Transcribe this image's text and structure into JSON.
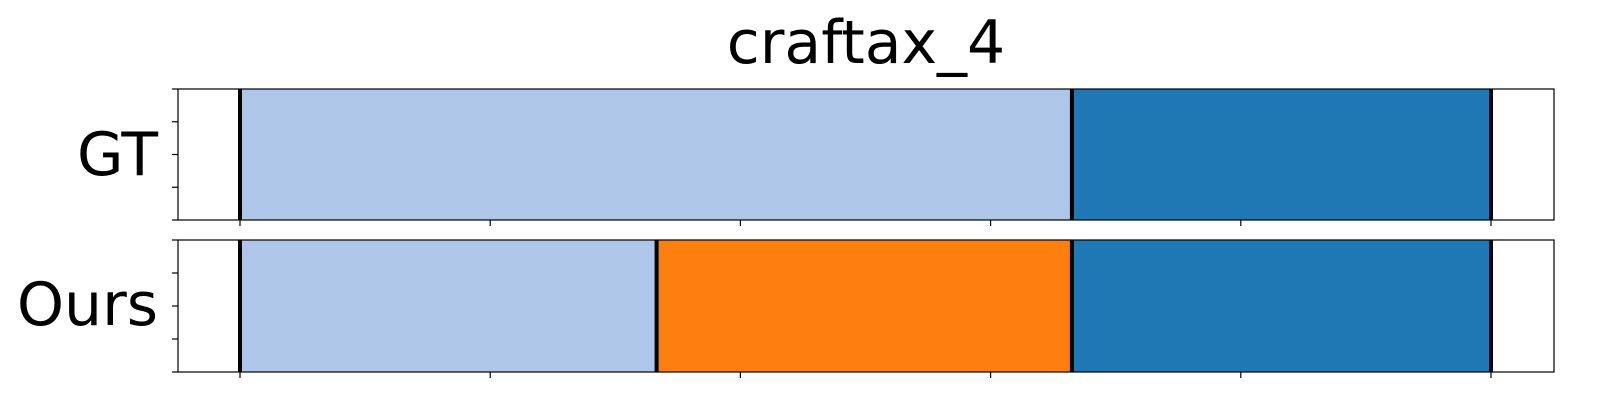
{
  "chart_data": {
    "type": "bar",
    "title": "craftax_4",
    "xlabel": "",
    "ylabel": "",
    "xlim": [
      0,
      1
    ],
    "x_ticks": [
      0,
      0.2,
      0.4,
      0.6,
      0.8,
      1.0
    ],
    "grid": false,
    "legend": "none",
    "rows": [
      {
        "label": "GT",
        "segments": [
          {
            "start": 0.0,
            "end": 0.665,
            "color": "#aec7e8"
          },
          {
            "start": 0.665,
            "end": 1.0,
            "color": "#1f77b4"
          }
        ],
        "boundaries": [
          0.0,
          0.665,
          1.0
        ]
      },
      {
        "label": "Ours",
        "segments": [
          {
            "start": 0.0,
            "end": 0.333,
            "color": "#aec7e8"
          },
          {
            "start": 0.333,
            "end": 0.665,
            "color": "#ff7f0e"
          },
          {
            "start": 0.665,
            "end": 1.0,
            "color": "#1f77b4"
          }
        ],
        "boundaries": [
          0.0,
          0.333,
          0.665,
          1.0
        ]
      }
    ]
  }
}
